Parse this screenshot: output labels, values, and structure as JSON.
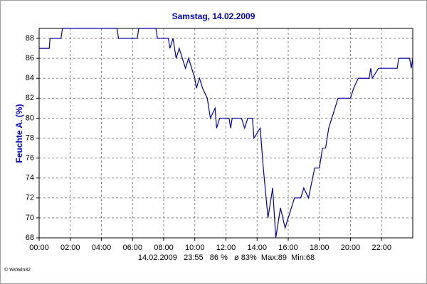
{
  "chart_data": {
    "type": "line",
    "title": "Samstag, 14.02.2009",
    "y_label": "Feuchte A. (%)",
    "footer": "14.02.2009   23:55   86 %   ø 83%  Max:89  Min:68",
    "credit": "© WsWin32",
    "xlim": [
      0,
      24
    ],
    "xticks": [
      {
        "value": 0,
        "label": "00:00"
      },
      {
        "value": 2,
        "label": "02:00"
      },
      {
        "value": 4,
        "label": "04:00"
      },
      {
        "value": 6,
        "label": "06:00"
      },
      {
        "value": 8,
        "label": "08:00"
      },
      {
        "value": 10,
        "label": "10:00"
      },
      {
        "value": 12,
        "label": "12:00"
      },
      {
        "value": 14,
        "label": "14:00"
      },
      {
        "value": 16,
        "label": "16:00"
      },
      {
        "value": 18,
        "label": "18:00"
      },
      {
        "value": 20,
        "label": "20:00"
      },
      {
        "value": 22,
        "label": "22:00"
      }
    ],
    "ylim": [
      68,
      89
    ],
    "yticks": [
      68,
      70,
      72,
      74,
      76,
      78,
      80,
      82,
      84,
      86,
      88
    ],
    "grid": true,
    "x": [
      0,
      0.65,
      0.7,
      1.4,
      1.5,
      5.0,
      5.1,
      6.3,
      6.4,
      7.5,
      7.6,
      8.3,
      8.4,
      8.6,
      8.8,
      9.0,
      9.2,
      9.4,
      9.6,
      9.8,
      10.0,
      10.1,
      10.3,
      10.5,
      10.8,
      11.0,
      11.3,
      11.4,
      11.6,
      12.2,
      12.3,
      12.4,
      13.0,
      13.2,
      13.4,
      13.7,
      13.8,
      14.2,
      14.4,
      14.7,
      15.0,
      15.2,
      15.5,
      15.8,
      16.2,
      16.4,
      16.8,
      17.0,
      17.3,
      17.7,
      18.0,
      18.2,
      18.4,
      18.6,
      18.8,
      19.2,
      20.0,
      20.2,
      20.5,
      21.2,
      21.3,
      21.4,
      21.8,
      23.0,
      23.1,
      23.8,
      23.9,
      24.0
    ],
    "series": [
      {
        "name": "Feuchte A.",
        "color": "#0000a0",
        "values": [
          87,
          87,
          88,
          88,
          89,
          89,
          88,
          88,
          89,
          89,
          88,
          88,
          87,
          88,
          86,
          87,
          86,
          85,
          86,
          85,
          84,
          83,
          84,
          83,
          82,
          80,
          81,
          79,
          80,
          80,
          79,
          80,
          80,
          79,
          80,
          80,
          78,
          79,
          75,
          70,
          73,
          68,
          71,
          69,
          71,
          72,
          72,
          73,
          72,
          75,
          75,
          77,
          77,
          79,
          80,
          82,
          82,
          83,
          84,
          84,
          85,
          84,
          85,
          85,
          86,
          86,
          85,
          86
        ]
      }
    ]
  }
}
